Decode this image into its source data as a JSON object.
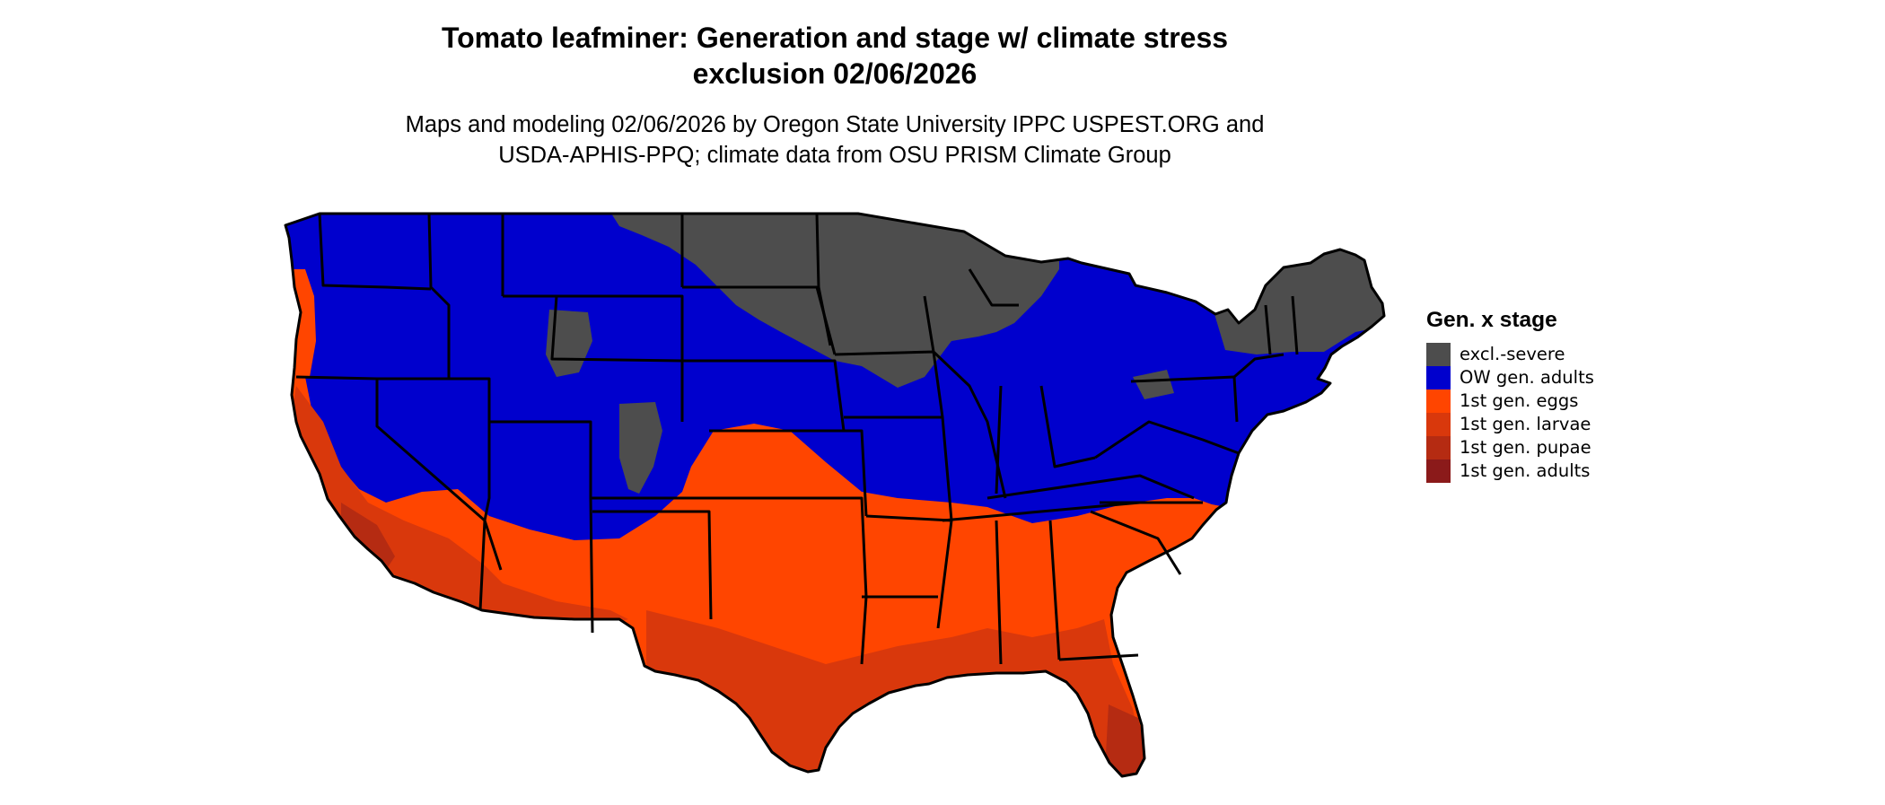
{
  "title": {
    "line1": "Tomato leafminer: Generation and stage w/ climate stress",
    "line2": "exclusion 02/06/2026"
  },
  "subtitle": {
    "line1": "Maps and modeling 02/06/2026 by Oregon State University IPPC USPEST.ORG and",
    "line2": "USDA-APHIS-PPQ; climate data from OSU PRISM Climate Group"
  },
  "legend": {
    "title": "Gen. x stage",
    "items": [
      {
        "label": "excl.-severe",
        "color": "#4d4d4d"
      },
      {
        "label": "OW gen. adults",
        "color": "#0000cd"
      },
      {
        "label": "1st gen. eggs",
        "color": "#ff4500"
      },
      {
        "label": "1st gen. larvae",
        "color": "#d9380c"
      },
      {
        "label": "1st gen. pupae",
        "color": "#b52b12"
      },
      {
        "label": "1st gen. adults",
        "color": "#8b1a1a"
      }
    ]
  },
  "map": {
    "region": "conterminous-united-states",
    "state_border_color": "#000000"
  }
}
